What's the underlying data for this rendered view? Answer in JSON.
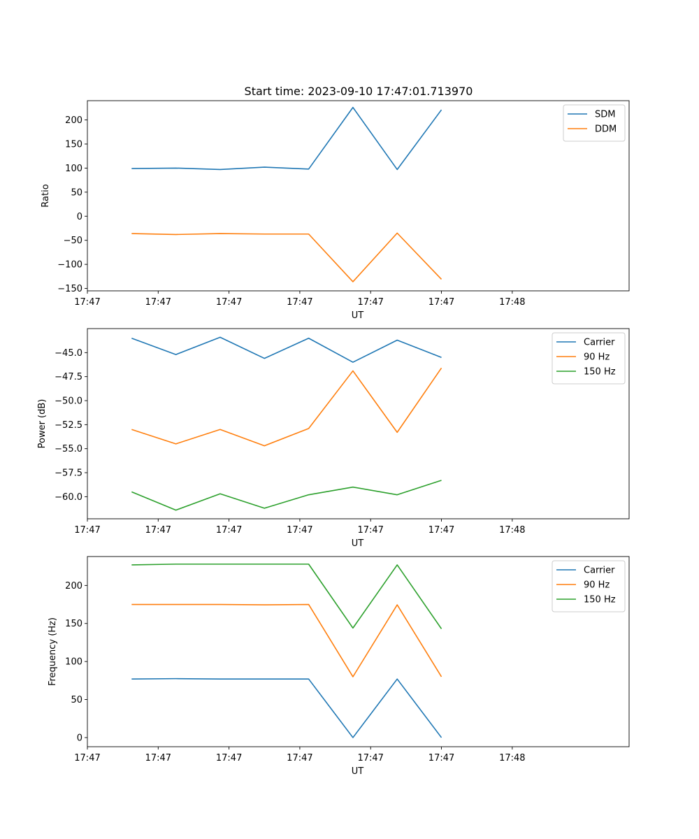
{
  "figure": {
    "title": "Start time: 2023-09-10 17:47:01.713970"
  },
  "colors": {
    "blue": "#1f77b4",
    "orange": "#ff7f0e",
    "green": "#2ca02c"
  },
  "chart_data": [
    {
      "type": "line",
      "title": "Start time: 2023-09-10 17:47:01.713970",
      "xlabel": "UT",
      "ylabel": "Ratio",
      "xlim": [
        0,
        6.12
      ],
      "ylim": [
        -155,
        240
      ],
      "x": [
        0.5,
        1.0,
        1.5,
        2.0,
        2.5,
        3.0,
        3.5,
        4.0
      ],
      "xticks": [
        0,
        0.8,
        1.6,
        2.4,
        3.2,
        4.0,
        4.8
      ],
      "xticklabels": [
        "17:47",
        "17:47",
        "17:47",
        "17:47",
        "17:47",
        "17:47",
        "17:48"
      ],
      "yticks": [
        -150,
        -100,
        -50,
        0,
        50,
        100,
        150,
        200
      ],
      "yticklabels": [
        "−150",
        "−100",
        "−50",
        "0",
        "50",
        "100",
        "150",
        "200"
      ],
      "legend": "top-right",
      "series": [
        {
          "name": "SDM",
          "color": "#1f77b4",
          "values": [
            99,
            100,
            97,
            102,
            98,
            226,
            97,
            221
          ]
        },
        {
          "name": "DDM",
          "color": "#ff7f0e",
          "values": [
            -36,
            -38,
            -36,
            -37,
            -37,
            -136,
            -35,
            -131
          ]
        }
      ]
    },
    {
      "type": "line",
      "xlabel": "UT",
      "ylabel": "Power (dB)",
      "xlim": [
        0,
        6.12
      ],
      "ylim": [
        -62.3,
        -42.5
      ],
      "x": [
        0.5,
        1.0,
        1.5,
        2.0,
        2.5,
        3.0,
        3.5,
        4.0
      ],
      "xticks": [
        0,
        0.8,
        1.6,
        2.4,
        3.2,
        4.0,
        4.8
      ],
      "xticklabels": [
        "17:47",
        "17:47",
        "17:47",
        "17:47",
        "17:47",
        "17:47",
        "17:48"
      ],
      "yticks": [
        -60.0,
        -57.5,
        -55.0,
        -52.5,
        -50.0,
        -47.5,
        -45.0
      ],
      "yticklabels": [
        "−60.0",
        "−57.5",
        "−55.0",
        "−52.5",
        "−50.0",
        "−47.5",
        "−45.0"
      ],
      "legend": "top-right",
      "series": [
        {
          "name": "Carrier",
          "color": "#1f77b4",
          "values": [
            -43.5,
            -45.2,
            -43.4,
            -45.6,
            -43.5,
            -46.0,
            -43.7,
            -45.5
          ]
        },
        {
          "name": "90 Hz",
          "color": "#ff7f0e",
          "values": [
            -53.0,
            -54.5,
            -53.0,
            -54.7,
            -52.9,
            -46.9,
            -53.3,
            -46.6
          ]
        },
        {
          "name": "150 Hz",
          "color": "#2ca02c",
          "values": [
            -59.5,
            -61.4,
            -59.7,
            -61.2,
            -59.8,
            -59.0,
            -59.8,
            -58.3
          ]
        }
      ]
    },
    {
      "type": "line",
      "xlabel": "UT",
      "ylabel": "Frequency (Hz)",
      "xlim": [
        0,
        6.12
      ],
      "ylim": [
        -12,
        238
      ],
      "x": [
        0.5,
        1.0,
        1.5,
        2.0,
        2.5,
        3.0,
        3.5,
        4.0
      ],
      "xticks": [
        0,
        0.8,
        1.6,
        2.4,
        3.2,
        4.0,
        4.8
      ],
      "xticklabels": [
        "17:47",
        "17:47",
        "17:47",
        "17:47",
        "17:47",
        "17:47",
        "17:48"
      ],
      "yticks": [
        0,
        50,
        100,
        150,
        200
      ],
      "yticklabels": [
        "0",
        "50",
        "100",
        "150",
        "200"
      ],
      "legend": "top-right",
      "series": [
        {
          "name": "Carrier",
          "color": "#1f77b4",
          "values": [
            77,
            77.5,
            77,
            77,
            77,
            0,
            77,
            0
          ]
        },
        {
          "name": "90 Hz",
          "color": "#ff7f0e",
          "values": [
            175,
            175,
            175,
            174.5,
            175,
            80,
            174.5,
            80
          ]
        },
        {
          "name": "150 Hz",
          "color": "#2ca02c",
          "values": [
            227,
            228,
            228,
            228,
            228,
            144,
            227,
            143
          ]
        }
      ]
    }
  ]
}
